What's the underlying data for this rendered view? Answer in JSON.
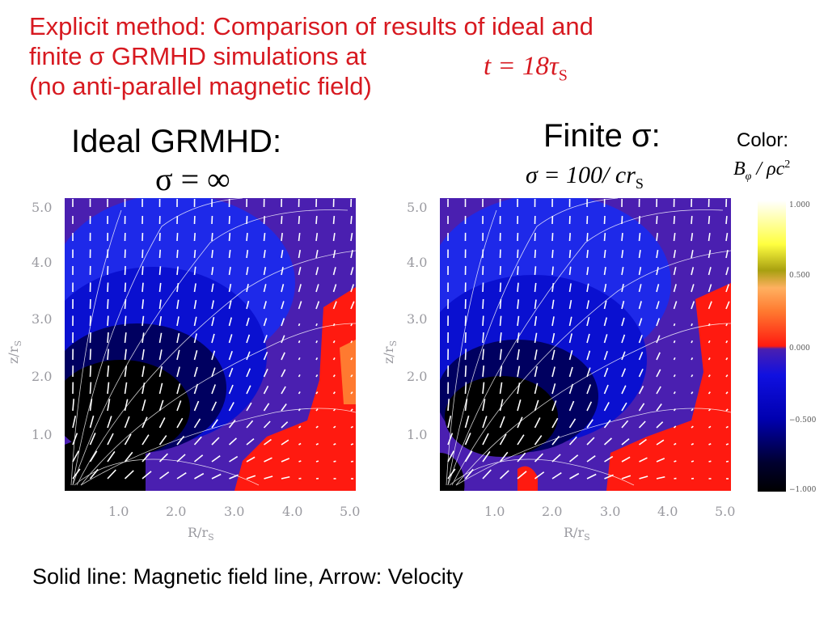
{
  "title": {
    "line1": "Explicit method: Comparison of results of ideal and",
    "line2": "finite σ GRMHD simulations at",
    "line3": "(no anti-parallel magnetic field)",
    "time_eq": "t = 18τ",
    "time_eq_sub": "S"
  },
  "left_panel": {
    "heading": "Ideal GRMHD:",
    "equation": "σ = ∞"
  },
  "right_panel": {
    "heading": "Finite σ:",
    "equation": "σ = 100/ cr",
    "equation_sub": "S"
  },
  "colorbar": {
    "label": "Color:",
    "quantity": "B",
    "quantity_sub": "φ",
    "quantity_rest": " / ρc",
    "quantity_sup": "2",
    "ticks": [
      "1.000",
      "0.500",
      "0.000",
      "−0.500",
      "−1.000"
    ],
    "colors": {
      "negative_max": "#000000",
      "negative_mid": "#0000d0",
      "zero": "#4a1fb0",
      "positive_low": "#ff2a10",
      "positive_mid": "#a8a010",
      "positive_max": "#ffffff"
    }
  },
  "axes": {
    "x_label": "R/r",
    "x_label_sub": "S",
    "y_label": "z/r",
    "y_label_sub": "S",
    "x_ticks": [
      "1.0",
      "2.0",
      "3.0",
      "4.0",
      "5.0"
    ],
    "y_ticks": [
      "1.0",
      "2.0",
      "3.0",
      "4.0",
      "5.0"
    ]
  },
  "footer": "Solid line: Magnetic field line, Arrow: Velocity"
}
